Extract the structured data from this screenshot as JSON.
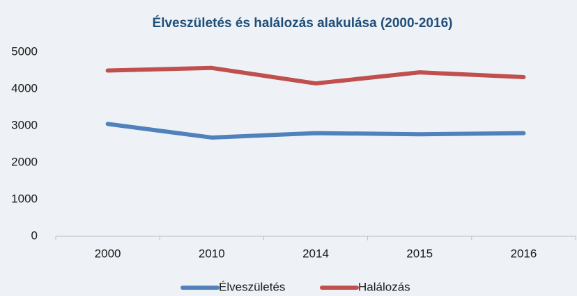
{
  "chart_data": {
    "type": "line",
    "title": "Élveszületés és halálozás alakulása (2000-2016)",
    "categories": [
      "2000",
      "2010",
      "2014",
      "2015",
      "2016"
    ],
    "series": [
      {
        "name": "Élveszületés",
        "color": "#4f81bd",
        "values": [
          3050,
          2680,
          2800,
          2770,
          2800
        ]
      },
      {
        "name": "Halálozás",
        "color": "#c0504d",
        "values": [
          4500,
          4570,
          4150,
          4450,
          4320
        ]
      }
    ],
    "ylim": [
      0,
      5000
    ],
    "yticks": [
      0,
      1000,
      2000,
      3000,
      4000,
      5000
    ],
    "grid": false,
    "legend": "bottom"
  }
}
